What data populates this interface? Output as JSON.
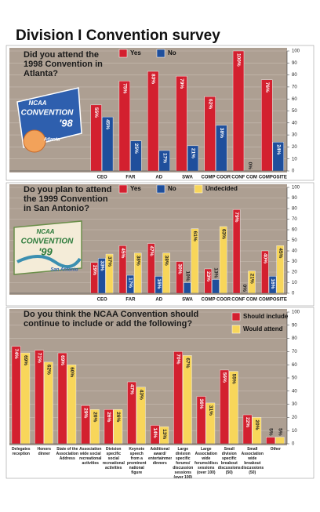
{
  "title": "Division I Convention survey",
  "chart_data": [
    {
      "type": "bar",
      "title": "Did you attend the 1998 Convention in Atlanta?",
      "annotations": [
        "NCAA",
        "CONVENTION",
        "'98",
        "Atlanta"
      ],
      "categories": [
        "CEO",
        "FAR",
        "AD",
        "SWA",
        "COMP COOR",
        "CONF COM",
        "COMPOSITE"
      ],
      "series": [
        {
          "name": "Yes",
          "color": "#d3202f",
          "values": [
            55,
            75,
            83,
            79,
            62,
            100,
            76
          ],
          "value_labels": [
            "55%",
            "75%",
            "83%",
            "79%",
            "62%",
            "100%",
            "76%"
          ]
        },
        {
          "name": "No",
          "color": "#1f4f9c",
          "values": [
            45,
            25,
            17,
            21,
            38,
            0,
            24
          ],
          "value_labels": [
            "45%",
            "25%",
            "17%",
            "21%",
            "38%",
            "0%",
            "24%"
          ]
        }
      ],
      "ylim": [
        0,
        100
      ],
      "yticks": [
        0,
        10,
        20,
        30,
        40,
        50,
        60,
        70,
        80,
        90,
        100
      ],
      "grid": true,
      "legend": "top"
    },
    {
      "type": "bar",
      "title": "Do you plan to attend the 1999 Convention in San Antonio?",
      "annotations": [
        "NCAA",
        "CONVENTION",
        "'99",
        "San Antonio"
      ],
      "categories": [
        "CEO",
        "FAR",
        "AD",
        "SWA",
        "COMP COOR",
        "CONF COM",
        "COMPOSITE"
      ],
      "series": [
        {
          "name": "Yes",
          "color": "#d3202f",
          "values": [
            29,
            45,
            47,
            30,
            23,
            79,
            40
          ],
          "value_labels": [
            "29%",
            "45%",
            "47%",
            "30%",
            "23%",
            "79%",
            "40%"
          ]
        },
        {
          "name": "No",
          "color": "#1f4f9c",
          "values": [
            33,
            17,
            16,
            10,
            13,
            0,
            16
          ],
          "value_labels": [
            "33%",
            "17%",
            "16%",
            "10%",
            "13%",
            "0%",
            "16%"
          ]
        },
        {
          "name": "Undecided",
          "color": "#f8d65a",
          "values": [
            37,
            38,
            38,
            61,
            63,
            21,
            45
          ],
          "value_labels": [
            "37%",
            "38%",
            "38%",
            "61%",
            "63%",
            "21%",
            "45%"
          ]
        }
      ],
      "ylim": [
        0,
        100
      ],
      "yticks": [
        0,
        10,
        20,
        30,
        40,
        50,
        60,
        70,
        80,
        90,
        100
      ],
      "grid": true,
      "legend": "top"
    },
    {
      "type": "bar",
      "title": "Do you think the NCAA Convention should continue to include or add the following?",
      "categories": [
        "Delegates reception",
        "Honors dinner",
        "State of the Association Address",
        "Association wide social recreational activities",
        "Division specific social recreational activities",
        "Keynote speech from a prominent national figure",
        "Additional award/ entertainment dinners",
        "Large division specific forums/ discussion sessions (over 100)",
        "Large Association wide forums/discussion sessions (over 100)",
        "Small division specific breakout discussions (50)",
        "Small Association wide breakout discussions (50)",
        "Other"
      ],
      "series": [
        {
          "name": "Should include",
          "color": "#d3202f",
          "values": [
            74,
            71,
            69,
            29,
            26,
            47,
            14,
            70,
            36,
            56,
            22,
            5
          ],
          "value_labels": [
            "74%",
            "71%",
            "69%",
            "29%",
            "26%",
            "47%",
            "14%",
            "70%",
            "36%",
            "56%",
            "22%",
            "5%"
          ]
        },
        {
          "name": "Would attend",
          "color": "#f8d65a",
          "values": [
            69,
            62,
            60,
            26,
            26,
            43,
            13,
            67,
            31,
            55,
            20,
            5
          ],
          "value_labels": [
            "69%",
            "62%",
            "60%",
            "26%",
            "26%",
            "43%",
            "13%",
            "67%",
            "31%",
            "55%",
            "20%",
            "5%"
          ]
        }
      ],
      "ylim": [
        0,
        100
      ],
      "yticks": [
        0,
        10,
        20,
        30,
        40,
        50,
        60,
        70,
        80,
        90,
        100
      ],
      "grid": true,
      "legend": "top-right"
    }
  ]
}
